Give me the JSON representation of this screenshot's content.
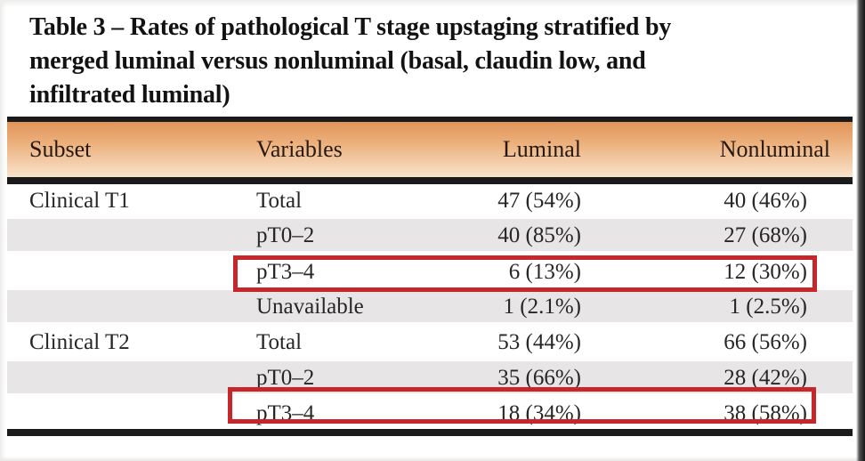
{
  "title": {
    "full": "Table 3 – Rates of pathological T stage upstaging stratified by merged luminal versus nonluminal (basal, claudin low, and infiltrated luminal)",
    "lines": [
      "Table 3 – Rates of pathological T stage upstaging stratified by",
      "merged luminal versus nonluminal (basal, claudin low, and",
      "infiltrated luminal)"
    ]
  },
  "table": {
    "columns": [
      "Subset",
      "Variables",
      "Luminal",
      "Nonluminal"
    ],
    "rows": [
      {
        "subset": "Clinical T1",
        "variable": "Total",
        "luminal": "47 (54%)",
        "nonluminal": "40 (46%)"
      },
      {
        "subset": "",
        "variable": "pT0–2",
        "luminal": "40 (85%)",
        "nonluminal": "27 (68%)"
      },
      {
        "subset": "",
        "variable": "pT3–4",
        "luminal": "6 (13%)",
        "nonluminal": "12 (30%)"
      },
      {
        "subset": "",
        "variable": "Unavailable",
        "luminal": "1 (2.1%)",
        "nonluminal": "1 (2.5%)"
      },
      {
        "subset": "Clinical T2",
        "variable": "Total",
        "luminal": "53 (44%)",
        "nonluminal": "66 (56%)"
      },
      {
        "subset": "",
        "variable": "pT0–2",
        "luminal": "35 (66%)",
        "nonluminal": "28 (42%)"
      },
      {
        "subset": "",
        "variable": "pT3–4",
        "luminal": "18 (34%)",
        "nonluminal": "38 (58%)"
      }
    ],
    "striped_row_indices": [
      1,
      3,
      5
    ],
    "highlighted_row_indices": [
      2,
      6
    ]
  },
  "colors": {
    "header_gradient_top": "#e2945a",
    "header_gradient_bottom": "#f8e3cc",
    "stripe": "#e7e5e6",
    "rule": "#1b1b1b",
    "highlight_border": "#c5272b",
    "text": "#262626"
  }
}
